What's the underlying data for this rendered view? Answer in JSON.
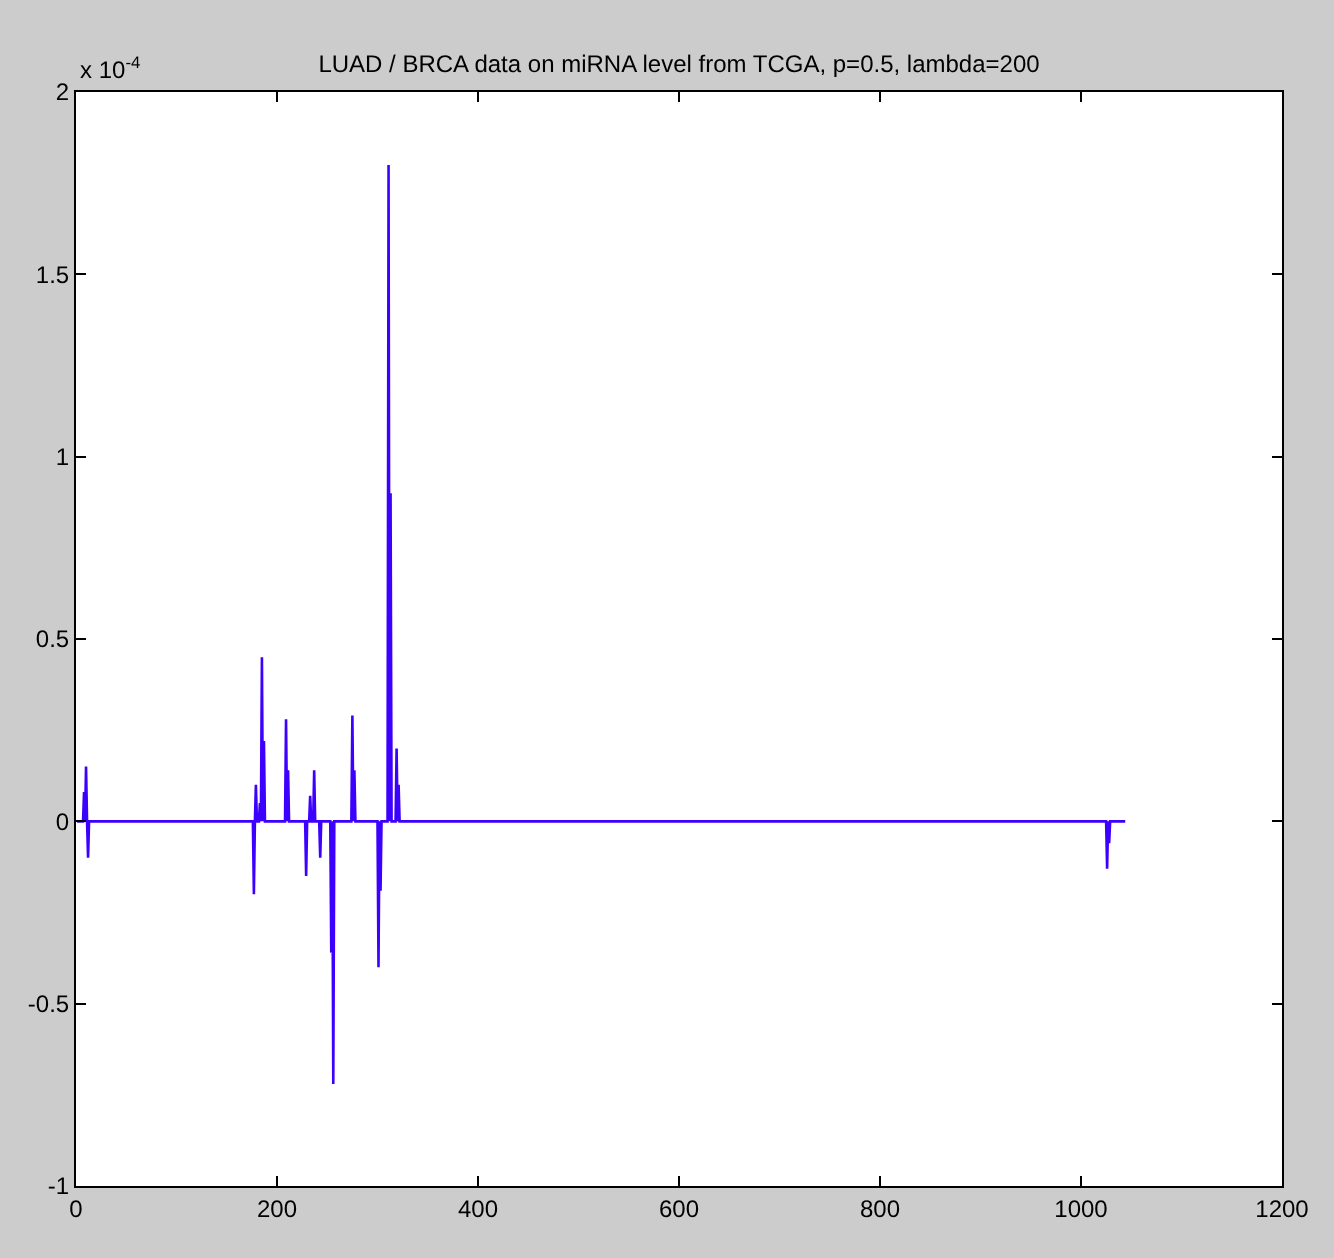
{
  "chart_data": {
    "type": "line",
    "title": "LUAD / BRCA data on miRNA level from TCGA, p=0.5, lambda=200",
    "x": [
      1,
      7,
      8,
      9,
      10,
      11,
      12,
      13,
      176,
      177,
      178,
      179,
      180,
      182,
      183,
      184,
      185,
      186,
      187,
      188,
      208,
      209,
      210,
      211,
      212,
      228,
      229,
      230,
      232,
      233,
      234,
      236,
      237,
      238,
      242,
      243,
      244,
      253,
      254,
      255,
      256,
      257,
      274,
      275,
      276,
      277,
      278,
      300,
      301,
      302,
      303,
      304,
      310,
      311,
      312,
      313,
      314,
      318,
      319,
      320,
      321,
      322,
      1025,
      1026,
      1027,
      1028,
      1029,
      1044
    ],
    "series": [
      {
        "color": "#3c00ff",
        "values": [
          0,
          0,
          0.08,
          0,
          0.15,
          0,
          -0.1,
          0,
          0,
          -0.2,
          0,
          0.1,
          0,
          0,
          0.05,
          0,
          0.45,
          0,
          0.22,
          0,
          0,
          0.28,
          0,
          0.14,
          0,
          0,
          -0.15,
          0,
          0,
          0.07,
          0,
          0,
          0.14,
          0,
          0,
          -0.1,
          0,
          0,
          -0.36,
          0,
          -0.72,
          0,
          0,
          0.29,
          0,
          0.14,
          0,
          0,
          -0.4,
          0,
          -0.19,
          0,
          0,
          1.8,
          0,
          0.9,
          0,
          0,
          0.2,
          0,
          0.1,
          0,
          0,
          -0.13,
          0,
          -0.06,
          0,
          0
        ]
      }
    ],
    "annotations": [
      "x 10$^{-4}$"
    ],
    "xlim": [
      0,
      1200
    ],
    "xticks": [
      0,
      200,
      400,
      600,
      800,
      1000,
      1200
    ],
    "ylim": [
      -1,
      2
    ],
    "yticks": [
      -1,
      -0.5,
      0,
      0.5,
      1,
      1.5,
      2
    ]
  }
}
